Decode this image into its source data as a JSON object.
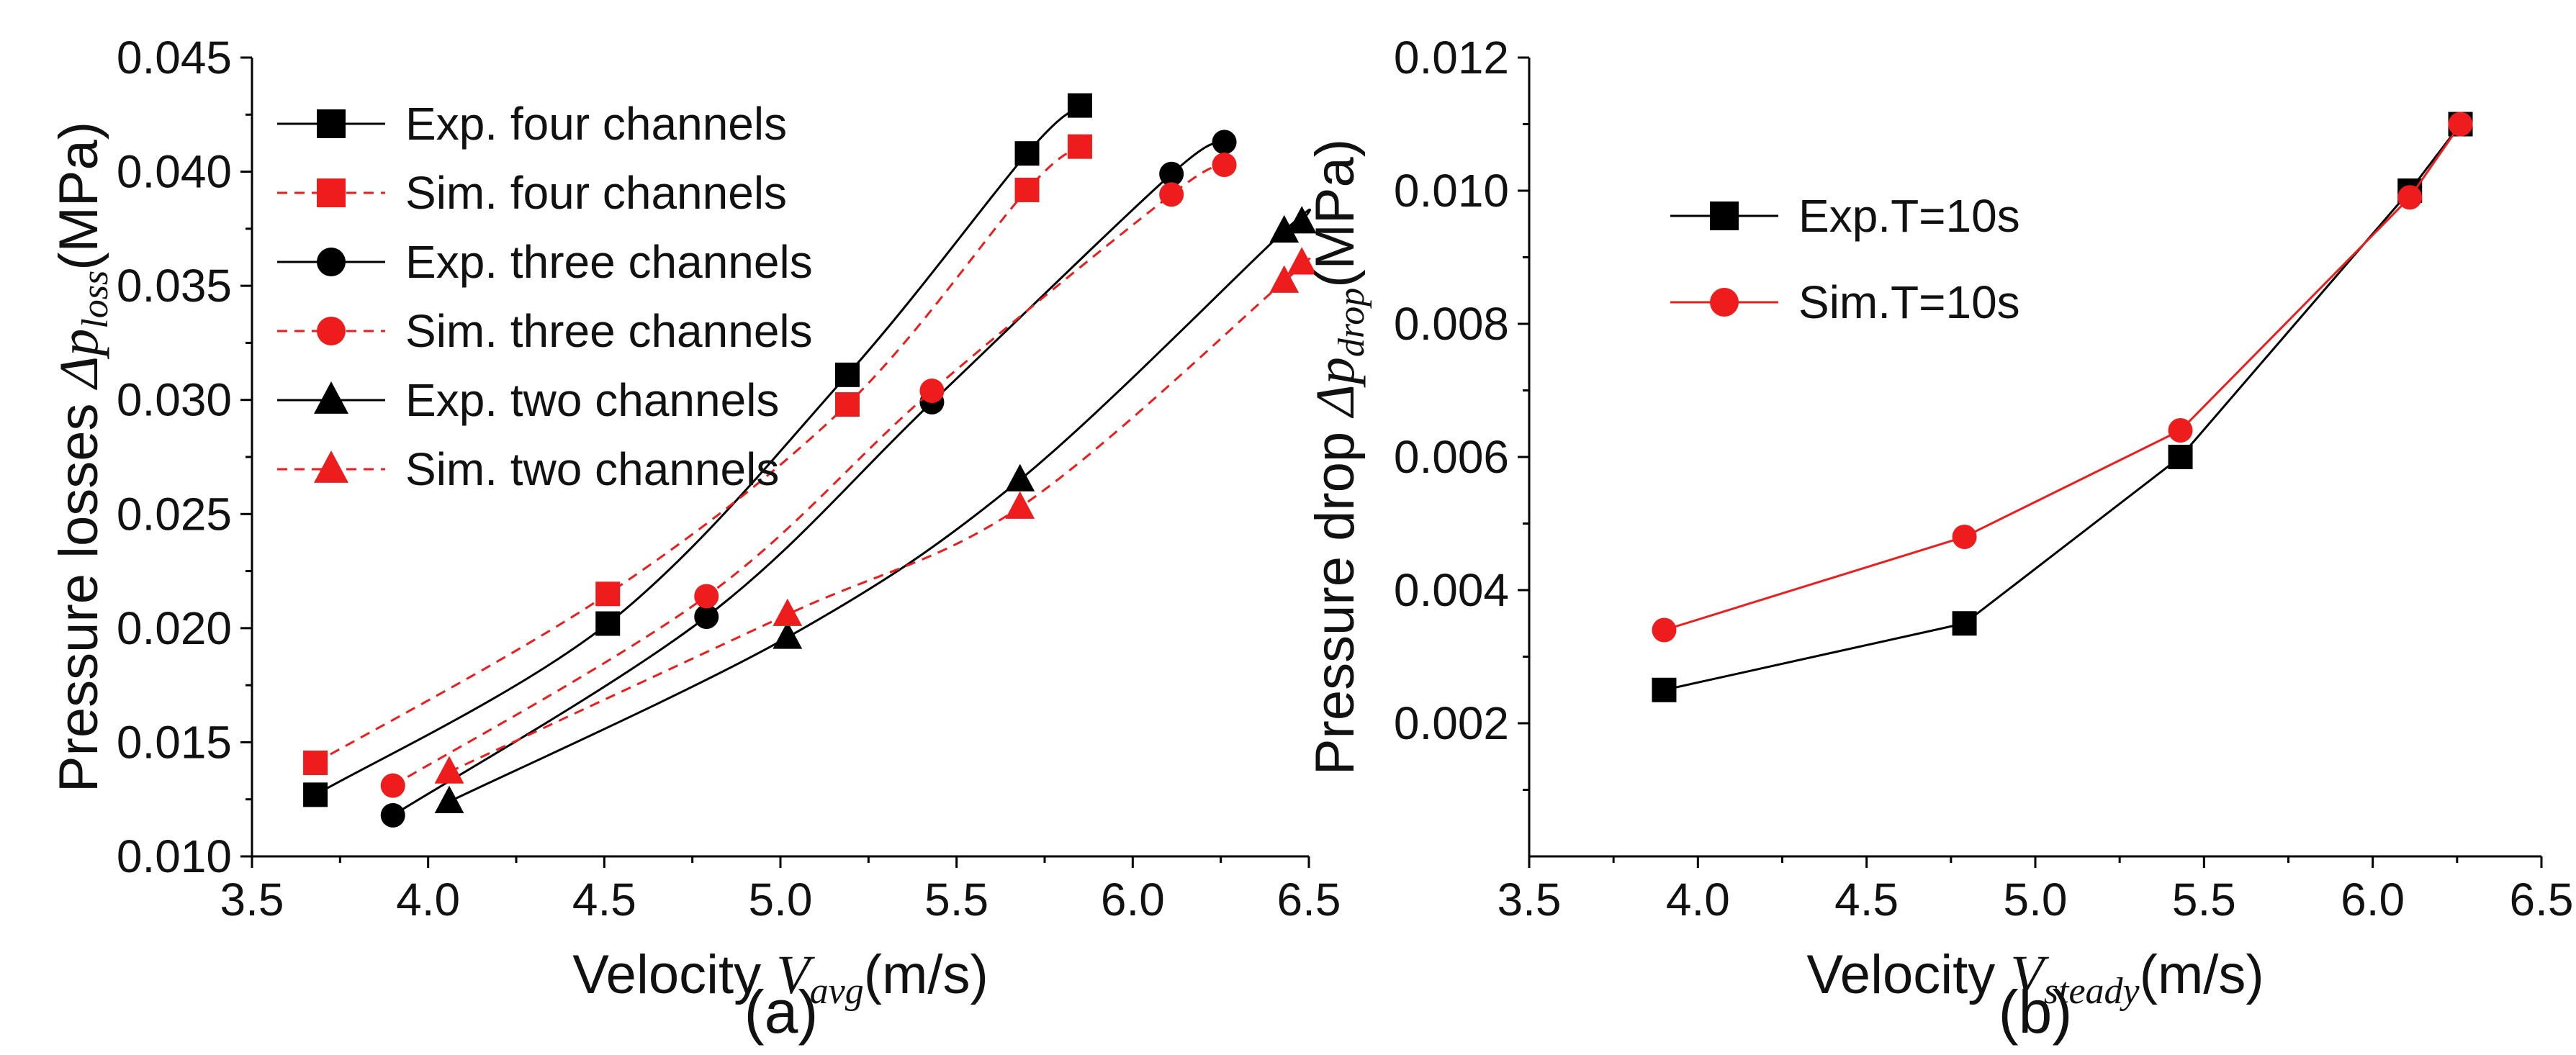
{
  "figure": {
    "panels": [
      "(a)",
      "(b)"
    ]
  },
  "chart_data": [
    {
      "type": "line",
      "panel_label": "(a)",
      "title": "",
      "xlabel": {
        "prefix": "Velocity ",
        "symbol": "V",
        "subscript": "avg",
        "suffix": "(m/s)"
      },
      "ylabel": {
        "prefix": "Pressure losses ",
        "symbol": "Δp",
        "subscript": "loss",
        "suffix": "(MPa)"
      },
      "xlim": [
        3.5,
        6.5
      ],
      "ylim": [
        0.01,
        0.045
      ],
      "xticks": [
        "3.5",
        "4.0",
        "4.5",
        "5.0",
        "5.5",
        "6.0",
        "6.5"
      ],
      "yticks": [
        "0.010",
        "0.015",
        "0.020",
        "0.025",
        "0.030",
        "0.035",
        "0.040",
        "0.045"
      ],
      "grid": false,
      "legend_position": "top-left",
      "series": [
        {
          "name": "Exp. four channels",
          "color": "#000000",
          "marker": "square",
          "dashed": false,
          "x": [
            3.68,
            4.51,
            5.19,
            5.7,
            5.85
          ],
          "y": [
            0.0127,
            0.0202,
            0.0311,
            0.0408,
            0.0429
          ]
        },
        {
          "name": "Sim. four channels",
          "color": "#ee1c1c",
          "marker": "square",
          "dashed": true,
          "x": [
            3.68,
            4.51,
            5.19,
            5.7,
            5.85
          ],
          "y": [
            0.0141,
            0.0215,
            0.0298,
            0.0392,
            0.0411
          ]
        },
        {
          "name": "Exp. three channels",
          "color": "#000000",
          "marker": "circle",
          "dashed": false,
          "x": [
            3.9,
            4.79,
            5.43,
            6.11,
            6.26
          ],
          "y": [
            0.0118,
            0.0205,
            0.0299,
            0.0399,
            0.0413
          ]
        },
        {
          "name": "Sim. three channels",
          "color": "#ee1c1c",
          "marker": "circle",
          "dashed": true,
          "x": [
            3.9,
            4.79,
            5.43,
            6.11,
            6.26
          ],
          "y": [
            0.0131,
            0.0214,
            0.0304,
            0.039,
            0.0403
          ]
        },
        {
          "name": "Exp. two channels",
          "color": "#000000",
          "marker": "triangle",
          "dashed": false,
          "x": [
            4.06,
            5.02,
            5.68,
            6.43,
            6.48
          ],
          "y": [
            0.0124,
            0.0196,
            0.0265,
            0.0374,
            0.0378
          ]
        },
        {
          "name": "Sim. two channels",
          "color": "#ee1c1c",
          "marker": "triangle",
          "dashed": true,
          "x": [
            4.06,
            5.02,
            5.68,
            6.43,
            6.48
          ],
          "y": [
            0.0137,
            0.0206,
            0.0253,
            0.0352,
            0.036
          ]
        }
      ]
    },
    {
      "type": "line",
      "panel_label": "(b)",
      "title": "",
      "xlabel": {
        "prefix": "Velocity ",
        "symbol": "V",
        "subscript": "steady",
        "suffix": "(m/s)"
      },
      "ylabel": {
        "prefix": "Pressure drop ",
        "symbol": "Δp",
        "subscript": "drop",
        "suffix": "(MPa)"
      },
      "xlim": [
        3.5,
        6.5
      ],
      "ylim": [
        0.0,
        0.012
      ],
      "xticks": [
        "3.5",
        "4.0",
        "4.5",
        "5.0",
        "5.5",
        "6.0",
        "6.5"
      ],
      "yticks": [
        "0.002",
        "0.004",
        "0.006",
        "0.008",
        "0.010",
        "0.012"
      ],
      "grid": false,
      "legend_position": "top-left",
      "series": [
        {
          "name": "Exp.T=10s",
          "color": "#000000",
          "marker": "square",
          "dashed": false,
          "x": [
            3.9,
            4.79,
            5.43,
            6.11,
            6.26
          ],
          "y": [
            0.0025,
            0.0035,
            0.006,
            0.01,
            0.011
          ]
        },
        {
          "name": "Sim.T=10s",
          "color": "#ee1c1c",
          "marker": "circle",
          "dashed": false,
          "x": [
            3.9,
            4.79,
            5.43,
            6.11,
            6.26
          ],
          "y": [
            0.0034,
            0.0048,
            0.0064,
            0.0099,
            0.011
          ]
        }
      ]
    }
  ]
}
